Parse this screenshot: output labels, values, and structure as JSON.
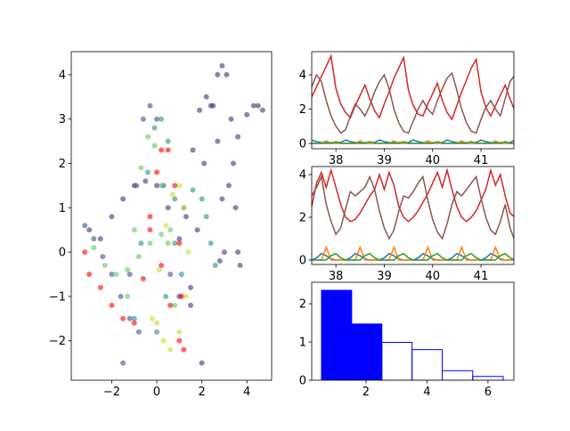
{
  "chart_data": [
    {
      "type": "scatter",
      "xlim": [
        -3.8,
        5.1
      ],
      "ylim": [
        -2.89,
        4.52
      ],
      "xticks": [
        {
          "value": -2,
          "label": "−2"
        },
        0,
        2,
        4
      ],
      "yticks": [
        {
          "value": -2,
          "label": "−2"
        },
        {
          "value": -1,
          "label": "−1"
        },
        0,
        1,
        2,
        3,
        4
      ],
      "series": [
        {
          "color": "#472d7b",
          "x": [
            1.5,
            1.8,
            2.1,
            2.4,
            2.7,
            2.9,
            3.1,
            3.3,
            3.4,
            3.5,
            3.6,
            3.7
          ],
          "y": [
            -1.2,
            0.5,
            2.0,
            3.3,
            4.0,
            4.2,
            4.0,
            3.0,
            2.0,
            1.0,
            0.0,
            -0.3
          ]
        },
        {
          "color": "#472d7b",
          "x": [
            2.8,
            3.2,
            3.6,
            4.0,
            4.3,
            4.5,
            4.7
          ],
          "y": [
            -0.2,
            1.5,
            2.6,
            3.1,
            3.3,
            3.3,
            3.2
          ]
        },
        {
          "color": "#472d7b",
          "x": [
            1.0,
            1.3,
            1.6,
            1.9,
            2.2,
            2.5,
            2.7,
            2.9,
            3.0
          ],
          "y": [
            -1.0,
            0.8,
            2.3,
            3.2,
            3.5,
            3.3,
            2.5,
            1.2,
            0.0
          ]
        },
        {
          "color": "#472d7b",
          "x": [
            -3.0,
            -2.5,
            -2.0,
            -1.5,
            -1.0,
            -0.5,
            0.0,
            0.5,
            1.0,
            1.5,
            2.0
          ],
          "y": [
            0.5,
            0.3,
            0.8,
            1.2,
            1.5,
            1.6,
            1.5,
            1.0,
            0.3,
            -0.8,
            -2.5
          ]
        },
        {
          "color": "#3b528b",
          "x": [
            -1.5,
            -1.2,
            -0.9,
            -0.6,
            -0.3,
            0.0,
            0.3,
            0.6
          ],
          "y": [
            -2.5,
            -0.5,
            1.5,
            3.0,
            3.3,
            3.0,
            1.5,
            -0.5
          ]
        },
        {
          "color": "#3b528b",
          "x": [
            -3.2,
            -2.8,
            -2.4,
            -2.0,
            -1.6,
            -1.2,
            -0.8
          ],
          "y": [
            0.6,
            0.3,
            -0.1,
            -0.5,
            -1.0,
            -1.5,
            -1.8
          ]
        },
        {
          "color": "#21918c",
          "x": [
            -1.0,
            -0.7,
            -0.4,
            -0.1,
            0.2,
            0.5,
            0.8,
            1.1
          ],
          "y": [
            -1.5,
            0.2,
            1.8,
            2.8,
            3.0,
            2.5,
            1.2,
            -0.5
          ]
        },
        {
          "color": "#21918c",
          "x": [
            0.0,
            0.4,
            0.8,
            1.2,
            1.6,
            2.0,
            2.2,
            2.4,
            2.6
          ],
          "y": [
            -1.8,
            -1.0,
            0.2,
            1.0,
            1.4,
            1.2,
            0.8,
            0.2,
            -0.3
          ]
        },
        {
          "color": "#5ec962",
          "x": [
            -1.3,
            -1.0,
            -0.7,
            -0.4,
            -0.1,
            0.2,
            0.5,
            0.8
          ],
          "y": [
            -1.0,
            0.5,
            1.9,
            2.6,
            2.4,
            1.5,
            0.2,
            -1.2
          ]
        },
        {
          "color": "#5ec962",
          "x": [
            -2.8,
            -2.3,
            -1.8,
            -1.3,
            -0.8,
            -0.3,
            0.2,
            0.6
          ],
          "y": [
            0.1,
            -0.3,
            -0.5,
            -0.4,
            -0.1,
            0.2,
            0.4,
            0.5
          ]
        },
        {
          "color": "#c8e020",
          "x": [
            -0.2,
            0.1,
            0.4,
            0.7,
            1.0,
            1.2,
            1.4,
            1.3,
            1.0,
            0.6,
            0.3,
            0.0
          ],
          "y": [
            -1.5,
            -0.4,
            0.6,
            1.3,
            1.5,
            1.0,
            0.0,
            -1.0,
            -1.8,
            -2.2,
            -2.0,
            -1.6
          ]
        },
        {
          "color": "#ff0000",
          "x": [
            -3.2,
            -3.0,
            -2.5,
            -2.0,
            -1.5,
            -1.0,
            -0.6,
            -0.3,
            0.0,
            0.2,
            0.5,
            0.8,
            1.0,
            1.1,
            1.2,
            1.0,
            0.6,
            0.2,
            -0.3
          ],
          "y": [
            0.0,
            -0.5,
            -0.8,
            -1.2,
            -1.5,
            -1.6,
            -0.6,
            0.8,
            1.8,
            2.3,
            2.3,
            1.5,
            0.2,
            -1.0,
            -2.2,
            -2.0,
            -1.2,
            -0.3,
            0.5
          ]
        }
      ]
    },
    {
      "type": "line",
      "xlim": [
        37.5,
        41.68
      ],
      "ylim": [
        -0.31,
        5.35
      ],
      "xticks": [
        38,
        39,
        40,
        41
      ],
      "yticks": [
        0,
        2,
        4
      ],
      "x": [
        37.5,
        37.6,
        37.7,
        37.8,
        37.9,
        38.0,
        38.1,
        38.2,
        38.3,
        38.4,
        38.5,
        38.6,
        38.7,
        38.8,
        38.9,
        39.0,
        39.1,
        39.2,
        39.3,
        39.4,
        39.5,
        39.6,
        39.7,
        39.8,
        39.9,
        40.0,
        40.1,
        40.2,
        40.3,
        40.4,
        40.5,
        40.6,
        40.7,
        40.8,
        40.9,
        41.0,
        41.1,
        41.2,
        41.3,
        41.4,
        41.5,
        41.6,
        41.7
      ],
      "series": [
        {
          "color": "#1f77b4",
          "values": [
            0.2,
            0.1,
            0.05,
            0.05,
            0.05,
            0.05,
            0.05,
            0.2,
            0.1,
            0.05,
            0.05,
            0.05,
            0.05,
            0.05,
            0.2,
            0.1,
            0.05,
            0.05,
            0.05,
            0.05,
            0.05,
            0.2,
            0.1,
            0.05,
            0.05,
            0.05,
            0.05,
            0.05,
            0.2,
            0.1,
            0.05,
            0.05,
            0.05,
            0.05,
            0.05,
            0.2,
            0.1,
            0.05,
            0.05,
            0.05,
            0.05,
            0.05,
            0.2
          ]
        },
        {
          "color": "#ff7f0e",
          "values": [
            0,
            0,
            0,
            0.15,
            0,
            0,
            0,
            0,
            0,
            0,
            0.15,
            0,
            0,
            0,
            0,
            0,
            0,
            0.15,
            0,
            0,
            0,
            0,
            0,
            0,
            0.15,
            0,
            0,
            0,
            0,
            0,
            0,
            0.15,
            0,
            0,
            0,
            0,
            0,
            0,
            0.15,
            0,
            0,
            0,
            0
          ]
        },
        {
          "color": "#2ca02c",
          "values": [
            0,
            0,
            0,
            0,
            0,
            0.1,
            0,
            0,
            0,
            0,
            0,
            0,
            0.1,
            0,
            0,
            0,
            0,
            0,
            0,
            0.1,
            0,
            0,
            0,
            0,
            0,
            0,
            0.1,
            0,
            0,
            0,
            0,
            0,
            0,
            0.1,
            0,
            0,
            0,
            0,
            0,
            0,
            0.1,
            0,
            0
          ]
        },
        {
          "color": "#d62728",
          "values": [
            2.7,
            3.3,
            3.9,
            4.5,
            5.1,
            3.2,
            2.3,
            1.8,
            1.5,
            2.2,
            2.8,
            3.4,
            2.6,
            1.9,
            1.5,
            2.3,
            3.0,
            3.8,
            4.4,
            5.0,
            3.1,
            2.2,
            1.7,
            1.6,
            2.3,
            2.9,
            3.5,
            2.5,
            1.8,
            1.4,
            2.2,
            3.0,
            3.7,
            4.4,
            4.9,
            3.0,
            2.1,
            1.6,
            2.2,
            2.8,
            3.4,
            2.6,
            1.9
          ]
        },
        {
          "color": "#8c564b",
          "values": [
            3.3,
            4.0,
            3.6,
            2.5,
            1.6,
            1.0,
            0.6,
            0.8,
            1.6,
            2.3,
            2.0,
            1.6,
            2.2,
            3.0,
            3.6,
            4.0,
            3.2,
            2.0,
            1.2,
            0.7,
            0.6,
            1.3,
            2.0,
            2.5,
            2.0,
            1.7,
            2.5,
            3.2,
            3.8,
            4.1,
            3.1,
            2.0,
            1.2,
            0.7,
            0.6,
            1.4,
            2.1,
            2.5,
            2.0,
            1.6,
            2.6,
            3.6,
            4.0
          ]
        }
      ]
    },
    {
      "type": "line",
      "xlim": [
        37.5,
        41.68
      ],
      "ylim": [
        -0.21,
        4.375
      ],
      "xticks": [
        38,
        39,
        40,
        41
      ],
      "yticks": [
        0,
        2,
        4
      ],
      "x": [
        37.5,
        37.6,
        37.7,
        37.8,
        37.9,
        38.0,
        38.1,
        38.2,
        38.3,
        38.4,
        38.5,
        38.6,
        38.7,
        38.8,
        38.9,
        39.0,
        39.1,
        39.2,
        39.3,
        39.4,
        39.5,
        39.6,
        39.7,
        39.8,
        39.9,
        40.0,
        40.1,
        40.2,
        40.3,
        40.4,
        40.5,
        40.6,
        40.7,
        40.8,
        40.9,
        41.0,
        41.1,
        41.2,
        41.3,
        41.4,
        41.5,
        41.6,
        41.7
      ],
      "series": [
        {
          "color": "#1f77b4",
          "values": [
            0,
            0.1,
            0.3,
            0.2,
            0.05,
            0,
            0,
            0,
            0.1,
            0.3,
            0.2,
            0.05,
            0,
            0,
            0,
            0.1,
            0.3,
            0.2,
            0.05,
            0,
            0,
            0,
            0.1,
            0.3,
            0.2,
            0.05,
            0,
            0,
            0,
            0.1,
            0.3,
            0.2,
            0.05,
            0,
            0,
            0,
            0.1,
            0.3,
            0.2,
            0.05,
            0,
            0,
            0
          ]
        },
        {
          "color": "#ff7f0e",
          "values": [
            0,
            0,
            0,
            0.6,
            0,
            0,
            0,
            0,
            0,
            0,
            0.6,
            0,
            0,
            0,
            0,
            0,
            0,
            0.6,
            0,
            0,
            0,
            0,
            0,
            0,
            0.6,
            0,
            0,
            0,
            0,
            0,
            0,
            0.6,
            0,
            0,
            0,
            0,
            0,
            0,
            0.6,
            0,
            0,
            0,
            0
          ]
        },
        {
          "color": "#2ca02c",
          "values": [
            0,
            0,
            0,
            0,
            0.2,
            0.3,
            0.1,
            0,
            0,
            0,
            0,
            0.2,
            0.3,
            0.1,
            0,
            0,
            0,
            0,
            0.2,
            0.3,
            0.1,
            0,
            0,
            0,
            0,
            0.2,
            0.3,
            0.1,
            0,
            0,
            0,
            0,
            0.2,
            0.3,
            0.1,
            0,
            0,
            0,
            0,
            0.2,
            0.3,
            0.1,
            0
          ]
        },
        {
          "color": "#d62728",
          "values": [
            2.5,
            3.6,
            4.1,
            3.4,
            4.2,
            3.4,
            2.6,
            2.0,
            1.8,
            1.9,
            2.2,
            2.6,
            3.0,
            3.3,
            4.0,
            3.3,
            4.1,
            3.5,
            2.5,
            2.0,
            1.8,
            2.0,
            2.3,
            2.7,
            3.1,
            3.6,
            4.1,
            3.4,
            4.2,
            3.3,
            2.5,
            2.0,
            1.8,
            2.0,
            2.3,
            2.8,
            3.3,
            4.2,
            3.5,
            4.0,
            3.0,
            2.2,
            2.0
          ]
        },
        {
          "color": "#8c564b",
          "values": [
            3.0,
            3.4,
            3.9,
            2.6,
            1.8,
            1.2,
            1.5,
            2.4,
            3.2,
            3.0,
            3.2,
            3.4,
            3.9,
            3.3,
            2.3,
            1.5,
            1.0,
            1.4,
            2.3,
            3.0,
            2.9,
            3.2,
            3.6,
            3.9,
            2.8,
            1.9,
            1.3,
            1.0,
            1.7,
            2.6,
            3.2,
            3.0,
            3.3,
            3.6,
            3.9,
            2.9,
            2.0,
            1.4,
            1.2,
            1.8,
            2.6,
            1.5,
            0.9
          ]
        }
      ]
    },
    {
      "type": "histogram",
      "xlim": [
        0.22,
        6.85
      ],
      "ylim": [
        0,
        2.56
      ],
      "xticks": [
        2,
        4,
        6
      ],
      "yticks": [
        0,
        1,
        2
      ],
      "bins": [
        0.54,
        1.53,
        2.52,
        3.51,
        4.5,
        5.5,
        6.5
      ],
      "values": [
        2.35,
        1.47,
        0.99,
        0.8,
        0.25,
        0.1
      ],
      "filled": [
        true,
        true,
        false,
        false,
        false,
        false
      ],
      "color": "#0000ff"
    }
  ]
}
